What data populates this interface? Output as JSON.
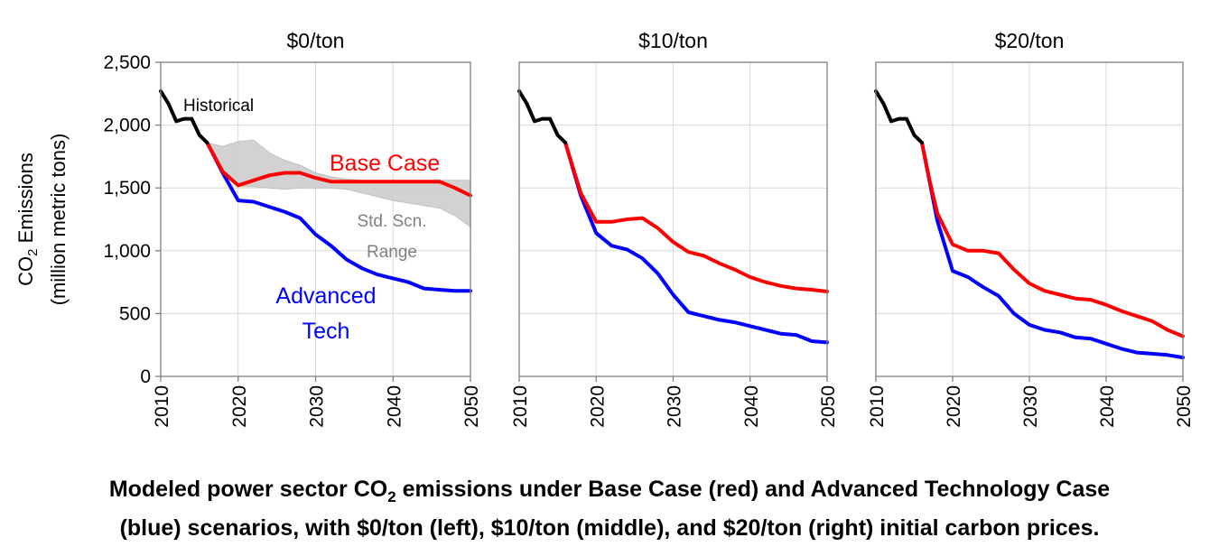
{
  "figure": {
    "ylabel_line1": "CO",
    "ylabel_sub": "2",
    "ylabel_line1_suffix": " Emissions",
    "ylabel_line2": "(million metric tons)",
    "y_ticks": [
      "0",
      "500",
      "1,000",
      "1,500",
      "2,000",
      "2,500"
    ],
    "x_ticks": [
      "2010",
      "2020",
      "2030",
      "2040",
      "2050"
    ],
    "colors": {
      "historical": "#000000",
      "base": "#ff0000",
      "advanced": "#0000ff",
      "range_fill": "#d0d0d0",
      "range_text": "#808080",
      "grid": "#d9d9d9",
      "frame": "#7f7f7f"
    }
  },
  "caption": {
    "line1_prefix": "Modeled power sector CO",
    "line1_sub": "2",
    "line1_suffix": " emissions under Base Case (red) and Advanced Technology Case",
    "line2": "(blue) scenarios, with $0/ton (left), $10/ton (middle), and $20/ton (right) initial carbon prices."
  },
  "chart_data": [
    {
      "type": "line",
      "title": "$0/ton",
      "xlabel": "",
      "ylabel": "CO2 Emissions (million metric tons)",
      "xlim": [
        2010,
        2050
      ],
      "ylim": [
        0,
        2500
      ],
      "grid": true,
      "annotations": {
        "historical": "Historical",
        "base": "Base Case",
        "range_line1": "Std. Scn.",
        "range_line2": "Range",
        "advanced_line1": "Advanced",
        "advanced_line2": "Tech"
      },
      "series": [
        {
          "name": "Historical",
          "x": [
            2010,
            2011,
            2012,
            2013,
            2014,
            2015,
            2016
          ],
          "values": [
            2270,
            2170,
            2030,
            2050,
            2050,
            1920,
            1860
          ]
        },
        {
          "name": "Base Case",
          "x": [
            2016,
            2018,
            2020,
            2022,
            2024,
            2026,
            2028,
            2030,
            2032,
            2034,
            2036,
            2038,
            2040,
            2042,
            2044,
            2046,
            2048,
            2050
          ],
          "values": [
            1860,
            1630,
            1520,
            1560,
            1600,
            1620,
            1620,
            1580,
            1550,
            1550,
            1550,
            1550,
            1550,
            1550,
            1550,
            1550,
            1500,
            1440
          ]
        },
        {
          "name": "Advanced Tech",
          "x": [
            2016,
            2018,
            2020,
            2022,
            2024,
            2026,
            2028,
            2030,
            2032,
            2034,
            2036,
            2038,
            2040,
            2042,
            2044,
            2046,
            2048,
            2050
          ],
          "values": [
            1860,
            1620,
            1400,
            1390,
            1350,
            1310,
            1260,
            1130,
            1040,
            930,
            860,
            810,
            780,
            750,
            700,
            690,
            680,
            680
          ]
        },
        {
          "name": "Std. Scn. Range",
          "type": "area",
          "x": [
            2016,
            2018,
            2020,
            2022,
            2024,
            2026,
            2028,
            2030,
            2032,
            2034,
            2036,
            2038,
            2040,
            2042,
            2044,
            2046,
            2048,
            2050
          ],
          "upper": [
            1860,
            1830,
            1870,
            1880,
            1780,
            1720,
            1680,
            1620,
            1590,
            1570,
            1560,
            1560,
            1560,
            1560,
            1560,
            1560,
            1560,
            1560
          ],
          "lower": [
            1860,
            1620,
            1510,
            1510,
            1500,
            1490,
            1500,
            1500,
            1500,
            1490,
            1460,
            1430,
            1400,
            1380,
            1360,
            1340,
            1280,
            1190
          ]
        }
      ]
    },
    {
      "type": "line",
      "title": "$10/ton",
      "xlabel": "",
      "ylabel": "",
      "xlim": [
        2010,
        2050
      ],
      "ylim": [
        0,
        2500
      ],
      "grid": true,
      "series": [
        {
          "name": "Historical",
          "x": [
            2010,
            2011,
            2012,
            2013,
            2014,
            2015,
            2016
          ],
          "values": [
            2270,
            2170,
            2030,
            2050,
            2050,
            1920,
            1860
          ]
        },
        {
          "name": "Base Case",
          "x": [
            2016,
            2018,
            2020,
            2022,
            2024,
            2026,
            2028,
            2030,
            2032,
            2034,
            2036,
            2038,
            2040,
            2042,
            2044,
            2046,
            2048,
            2050
          ],
          "values": [
            1860,
            1460,
            1230,
            1230,
            1250,
            1260,
            1180,
            1070,
            990,
            960,
            900,
            850,
            790,
            750,
            720,
            700,
            690,
            675
          ]
        },
        {
          "name": "Advanced Tech",
          "x": [
            2016,
            2018,
            2020,
            2022,
            2024,
            2026,
            2028,
            2030,
            2032,
            2034,
            2036,
            2038,
            2040,
            2042,
            2044,
            2046,
            2048,
            2050
          ],
          "values": [
            1860,
            1440,
            1140,
            1040,
            1010,
            940,
            820,
            650,
            510,
            480,
            450,
            430,
            400,
            370,
            340,
            330,
            280,
            270
          ]
        }
      ]
    },
    {
      "type": "line",
      "title": "$20/ton",
      "xlabel": "",
      "ylabel": "",
      "xlim": [
        2010,
        2050
      ],
      "ylim": [
        0,
        2500
      ],
      "grid": true,
      "series": [
        {
          "name": "Historical",
          "x": [
            2010,
            2011,
            2012,
            2013,
            2014,
            2015,
            2016
          ],
          "values": [
            2270,
            2170,
            2030,
            2050,
            2050,
            1920,
            1860
          ]
        },
        {
          "name": "Base Case",
          "x": [
            2016,
            2017,
            2018,
            2020,
            2022,
            2024,
            2026,
            2028,
            2030,
            2032,
            2034,
            2036,
            2038,
            2040,
            2042,
            2044,
            2046,
            2048,
            2050
          ],
          "values": [
            1860,
            1560,
            1300,
            1050,
            1000,
            1000,
            980,
            850,
            740,
            680,
            650,
            620,
            610,
            570,
            520,
            480,
            440,
            370,
            320
          ]
        },
        {
          "name": "Advanced Tech",
          "x": [
            2016,
            2017,
            2018,
            2020,
            2022,
            2024,
            2026,
            2028,
            2030,
            2032,
            2034,
            2036,
            2038,
            2040,
            2042,
            2044,
            2046,
            2048,
            2050
          ],
          "values": [
            1860,
            1550,
            1240,
            840,
            790,
            710,
            640,
            500,
            410,
            370,
            350,
            310,
            300,
            260,
            220,
            190,
            180,
            170,
            150
          ]
        }
      ]
    }
  ]
}
